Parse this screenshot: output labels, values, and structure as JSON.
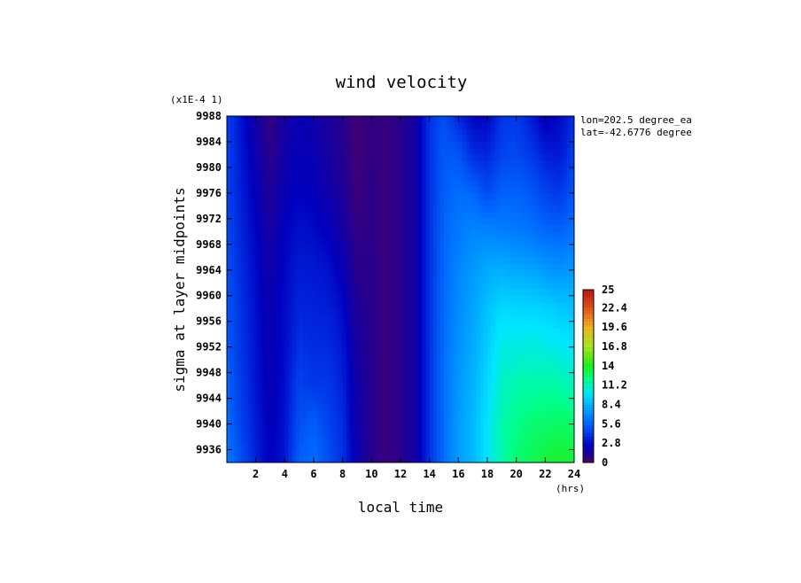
{
  "chart_data": {
    "type": "heatmap",
    "title": "wind velocity",
    "scale_note": "(x1E-4 1)",
    "xlabel": "local time",
    "xunit": "(hrs)",
    "ylabel": "sigma at layer midpoints",
    "xlim": [
      0,
      24
    ],
    "ylim": [
      9988,
      9934
    ],
    "x_ticks": [
      "2",
      "4",
      "6",
      "8",
      "10",
      "12",
      "14",
      "16",
      "18",
      "20",
      "22",
      "24"
    ],
    "y_ticks": [
      "9936",
      "9940",
      "9944",
      "9948",
      "9952",
      "9956",
      "9960",
      "9964",
      "9968",
      "9972",
      "9976",
      "9980",
      "9984",
      "9988"
    ],
    "annotations": [
      "lon=202.5 degree_ea",
      "lat=-42.6776 degree"
    ],
    "colorbar": {
      "min": 0,
      "max": 25,
      "tick_labels": [
        "25",
        "22.4",
        "19.6",
        "16.8",
        "14",
        "11.2",
        "8.4",
        "5.6",
        "2.8",
        "0"
      ]
    },
    "x": [
      0,
      1,
      2,
      3,
      4,
      5,
      6,
      7,
      8,
      9,
      10,
      11,
      12,
      13,
      14,
      15,
      16,
      17,
      18,
      19,
      20,
      21,
      22,
      23,
      24
    ],
    "y": [
      9934,
      9940,
      9946,
      9952,
      9958,
      9964,
      9970,
      9976,
      9982,
      9988
    ],
    "z": [
      [
        6.5,
        5,
        3.5,
        2.4,
        3.2,
        5.5,
        6,
        5,
        4,
        2,
        1,
        0.6,
        1,
        1.6,
        4,
        6,
        7.5,
        8.5,
        10,
        11.5,
        12.5,
        13,
        13.5,
        13.8,
        13.5
      ],
      [
        6,
        4.5,
        3.3,
        2.3,
        3,
        5,
        5.5,
        4.6,
        3.8,
        1.8,
        1,
        0.6,
        1,
        1.6,
        4,
        6,
        7.5,
        8.5,
        10,
        11.5,
        12,
        12.5,
        12.6,
        12.8,
        12.5
      ],
      [
        5.7,
        4.3,
        3.1,
        2.2,
        2.9,
        4.6,
        4.2,
        4.2,
        3.5,
        1.7,
        1,
        0.6,
        1,
        1.6,
        4,
        6,
        7.4,
        8.3,
        9.6,
        11,
        11.5,
        11.5,
        11.6,
        11.5,
        11.2
      ],
      [
        5.4,
        4.1,
        3,
        2.1,
        2.8,
        4,
        3.8,
        3.8,
        3.2,
        1.5,
        1,
        0.6,
        1,
        1.6,
        4,
        6,
        7.2,
        8,
        9.2,
        10.5,
        10.5,
        10.6,
        10.5,
        10.3,
        10
      ],
      [
        5.2,
        4,
        2.9,
        2,
        2.8,
        3.6,
        3.5,
        3.4,
        2.8,
        1.2,
        1,
        0.6,
        1,
        1.6,
        4,
        5.9,
        7,
        7.8,
        8.8,
        9.6,
        9.5,
        9.5,
        9.3,
        9,
        8.8
      ],
      [
        5,
        3.8,
        2.8,
        1.8,
        2.7,
        3.3,
        3.2,
        3,
        2.2,
        0.9,
        1,
        0.6,
        1,
        1.6,
        4,
        5.8,
        6.8,
        7.4,
        8,
        8.2,
        8,
        7.8,
        7.5,
        7.2,
        7.5
      ],
      [
        4.8,
        3.6,
        2.6,
        1.6,
        2.5,
        3,
        2.8,
        2.4,
        1.6,
        0.7,
        0.9,
        0.6,
        1,
        1.6,
        4,
        5.7,
        6.4,
        6.8,
        6.8,
        6.6,
        6.4,
        6.2,
        5.8,
        5.6,
        6.2
      ],
      [
        4.6,
        3.4,
        2.3,
        1.2,
        2.2,
        2.5,
        2.4,
        1.9,
        1.3,
        0.5,
        0.9,
        0.6,
        1,
        1.6,
        4,
        5.5,
        6,
        5.8,
        4.8,
        5.6,
        5.6,
        5.3,
        4.6,
        4.2,
        5.2
      ],
      [
        4.5,
        3.2,
        2,
        0.8,
        1.8,
        2.3,
        2.1,
        1.5,
        1.1,
        0.4,
        0.8,
        0.6,
        1,
        1.6,
        4,
        5.3,
        5.2,
        3.8,
        3.6,
        4.6,
        4.8,
        4.2,
        3.4,
        3.2,
        4.4
      ],
      [
        4.4,
        3,
        1.7,
        0.6,
        1.6,
        2.2,
        1.9,
        1.3,
        1,
        0.4,
        0.8,
        0.6,
        1,
        1.6,
        4,
        5,
        3.6,
        2.6,
        2.6,
        4,
        4.2,
        3.4,
        2.2,
        2.8,
        3.8
      ]
    ]
  }
}
